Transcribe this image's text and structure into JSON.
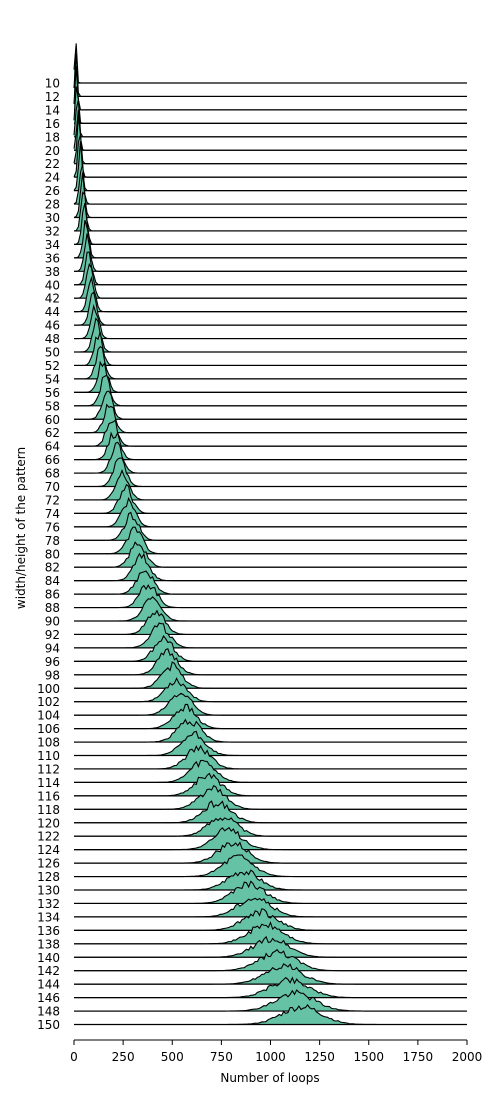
{
  "chart_data": {
    "type": "ridgeline",
    "title": "",
    "xlabel": "Number of loops",
    "ylabel": "width/height of the pattern",
    "xlim": [
      0,
      2000
    ],
    "xticks": [
      0,
      250,
      500,
      750,
      1000,
      1250,
      1500,
      1750,
      2000
    ],
    "grid": false,
    "fill_color": "#66c2a5",
    "line_color": "#000000",
    "categories": [
      "10",
      "12",
      "14",
      "16",
      "18",
      "20",
      "22",
      "24",
      "26",
      "28",
      "30",
      "32",
      "34",
      "36",
      "38",
      "40",
      "42",
      "44",
      "46",
      "48",
      "50",
      "52",
      "54",
      "56",
      "58",
      "60",
      "62",
      "64",
      "66",
      "68",
      "70",
      "72",
      "74",
      "76",
      "78",
      "80",
      "82",
      "84",
      "86",
      "88",
      "90",
      "92",
      "94",
      "96",
      "98",
      "100",
      "102",
      "104",
      "106",
      "108",
      "110",
      "112",
      "114",
      "116",
      "118",
      "120",
      "122",
      "124",
      "126",
      "128",
      "130",
      "132",
      "134",
      "136",
      "138",
      "140",
      "142",
      "144",
      "146",
      "148",
      "150"
    ],
    "peak_x": [
      8,
      10,
      12,
      15,
      18,
      21,
      25,
      29,
      33,
      38,
      43,
      48,
      54,
      60,
      67,
      74,
      81,
      89,
      97,
      106,
      115,
      125,
      135,
      146,
      157,
      168,
      180,
      193,
      206,
      219,
      233,
      247,
      262,
      277,
      293,
      309,
      326,
      343,
      361,
      379,
      397,
      416,
      436,
      456,
      476,
      497,
      519,
      541,
      563,
      585,
      608,
      632,
      656,
      680,
      705,
      730,
      756,
      782,
      808,
      835,
      862,
      890,
      918,
      947,
      976,
      1005,
      1035,
      1065,
      1096,
      1127,
      1158
    ],
    "spread_x": [
      5,
      5.5,
      6,
      6.5,
      7,
      8,
      8.5,
      9,
      10,
      11,
      11.5,
      12,
      13,
      14,
      15,
      16,
      17,
      18,
      19,
      20,
      21,
      22,
      23,
      24,
      25,
      26,
      27,
      28,
      29,
      30,
      31,
      33,
      34,
      35,
      36,
      38,
      39,
      40,
      42,
      43,
      45,
      46,
      48,
      49,
      51,
      52,
      54,
      56,
      57,
      59,
      61,
      62,
      64,
      66,
      68,
      70,
      72,
      74,
      76,
      78,
      80,
      82,
      84,
      86,
      88,
      90,
      92,
      95,
      97,
      99,
      101
    ]
  }
}
